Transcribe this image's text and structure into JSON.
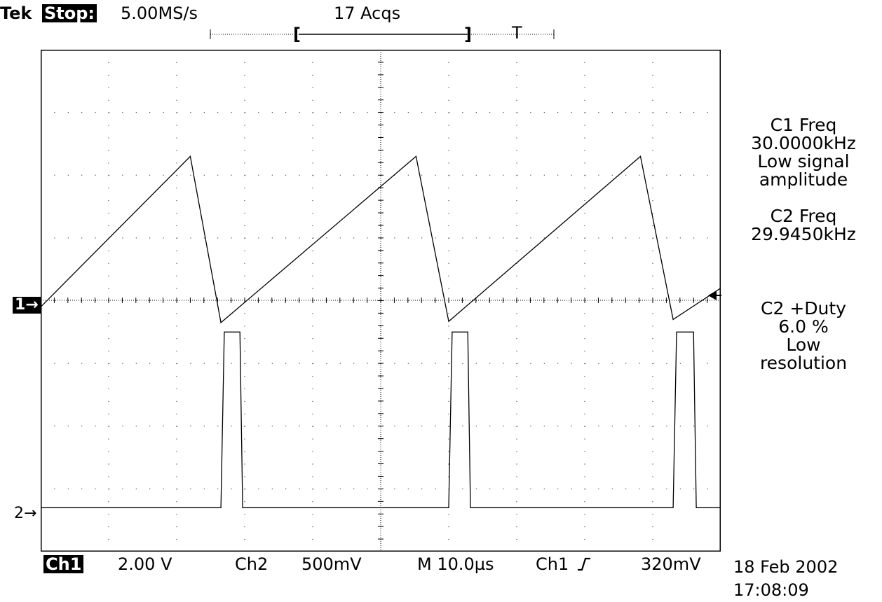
{
  "header": {
    "brand": "Tek",
    "run_state": "Stop:",
    "sample_rate": "5.00MS/s",
    "acquisitions": "17 Acqs"
  },
  "record_bar": {
    "left_bracket": "[",
    "right_bracket": "]",
    "trigger_marker": "T"
  },
  "markers": {
    "ch1_ground": "1→",
    "ch2_ground": "2→"
  },
  "readouts": {
    "c1_freq_title": "C1 Freq",
    "c1_freq_value": "30.0000kHz",
    "c1_note_line1": "Low signal",
    "c1_note_line2": "amplitude",
    "c2_freq_title": "C2 Freq",
    "c2_freq_value": "29.9450kHz",
    "c2_duty_title": "C2 +Duty",
    "c2_duty_value": "6.0 %",
    "c2_note_line1": "Low",
    "c2_note_line2": "resolution"
  },
  "bottom_bar": {
    "ch1_label": "Ch1",
    "ch1_scale": "2.00 V",
    "ch2_label": "Ch2",
    "ch2_scale": "500mV",
    "timebase": "M 10.0µs",
    "trigger_source": "Ch1",
    "trigger_slope_icon": "rising-edge-icon",
    "trigger_level": "320mV"
  },
  "timestamp": {
    "date": "18 Feb 2002",
    "time": "17:08:09"
  },
  "chart_data": {
    "type": "line",
    "x_unit": "µs",
    "x_range": [
      0,
      100
    ],
    "series": [
      {
        "channel": "Ch1",
        "shape": "sawtooth",
        "frequency_khz": 30.0,
        "y_unit": "div",
        "points": [
          [
            0,
            1.65
          ],
          [
            22.0,
            4.05
          ],
          [
            26.5,
            1.4
          ],
          [
            55.2,
            4.05
          ],
          [
            60.0,
            1.42
          ],
          [
            88.2,
            4.05
          ],
          [
            93.0,
            1.45
          ],
          [
            100,
            1.95
          ]
        ]
      },
      {
        "channel": "Ch2",
        "shape": "pulse",
        "frequency_khz": 29.945,
        "duty_percent": 6.0,
        "y_unit": "div",
        "points": [
          [
            0,
            0
          ],
          [
            26.5,
            0
          ],
          [
            27.0,
            2.8
          ],
          [
            29.3,
            2.8
          ],
          [
            29.7,
            0
          ],
          [
            60.0,
            0
          ],
          [
            60.5,
            2.8
          ],
          [
            62.8,
            2.8
          ],
          [
            63.2,
            0
          ],
          [
            93.0,
            0
          ],
          [
            93.5,
            2.8
          ],
          [
            96.0,
            2.8
          ],
          [
            96.4,
            0
          ],
          [
            100,
            0
          ]
        ]
      }
    ]
  }
}
